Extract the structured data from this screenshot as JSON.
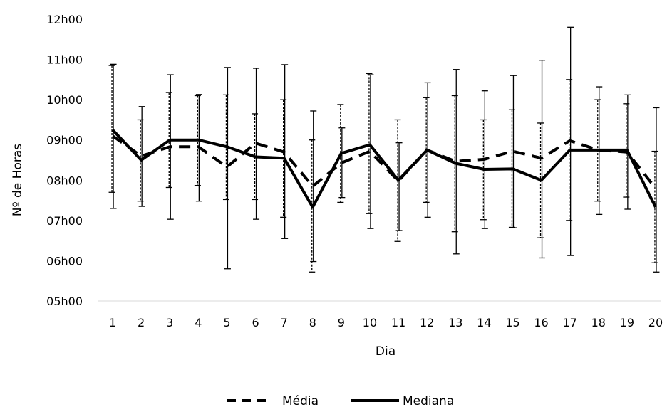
{
  "chart_data": {
    "type": "line",
    "title": "",
    "xlabel": "Dia",
    "ylabel": "Nº de Horas",
    "x": [
      1,
      2,
      3,
      4,
      5,
      6,
      7,
      8,
      9,
      10,
      11,
      12,
      13,
      14,
      15,
      16,
      17,
      18,
      19,
      20
    ],
    "ylim": [
      5,
      12
    ],
    "y_ticks": [
      "05h00",
      "06h00",
      "07h00",
      "08h00",
      "09h00",
      "10h00",
      "11h00",
      "12h00"
    ],
    "grid": false,
    "legend_position": "bottom",
    "series": [
      {
        "name": "Média",
        "style": "dashed",
        "color": "#000000",
        "values": [
          9.1,
          8.6,
          8.83,
          8.83,
          8.33,
          8.92,
          8.7,
          7.85,
          8.43,
          8.72,
          7.98,
          8.75,
          8.47,
          8.52,
          8.72,
          8.55,
          8.98,
          8.75,
          8.7,
          7.8
        ],
        "error_low": [
          7.7,
          7.48,
          7.82,
          7.87,
          7.52,
          7.52,
          7.08,
          5.72,
          7.45,
          7.17,
          6.48,
          7.45,
          6.72,
          7.02,
          6.83,
          6.57,
          7.0,
          7.48,
          7.58,
          5.95
        ],
        "error_high": [
          10.85,
          9.5,
          10.18,
          10.1,
          10.12,
          9.65,
          10.0,
          9.0,
          9.88,
          10.65,
          9.5,
          10.05,
          10.1,
          9.5,
          9.75,
          9.42,
          10.5,
          10.0,
          9.9,
          8.72
        ]
      },
      {
        "name": "Mediana",
        "style": "solid",
        "color": "#000000",
        "values": [
          9.25,
          8.5,
          9.0,
          9.0,
          8.83,
          8.58,
          8.55,
          7.33,
          8.67,
          8.88,
          8.0,
          8.75,
          8.42,
          8.27,
          8.28,
          8.0,
          8.75,
          8.75,
          8.75,
          7.33
        ],
        "error_low": [
          7.3,
          7.35,
          7.03,
          7.48,
          5.8,
          7.03,
          6.55,
          5.98,
          7.57,
          6.8,
          6.75,
          7.08,
          6.17,
          6.8,
          6.82,
          6.07,
          6.13,
          7.15,
          7.28,
          5.72
        ],
        "error_high": [
          10.88,
          9.83,
          10.62,
          10.13,
          10.8,
          10.78,
          10.87,
          9.72,
          9.3,
          10.62,
          8.93,
          10.42,
          10.75,
          10.22,
          10.6,
          10.98,
          11.8,
          10.32,
          10.12,
          9.8
        ]
      }
    ]
  }
}
